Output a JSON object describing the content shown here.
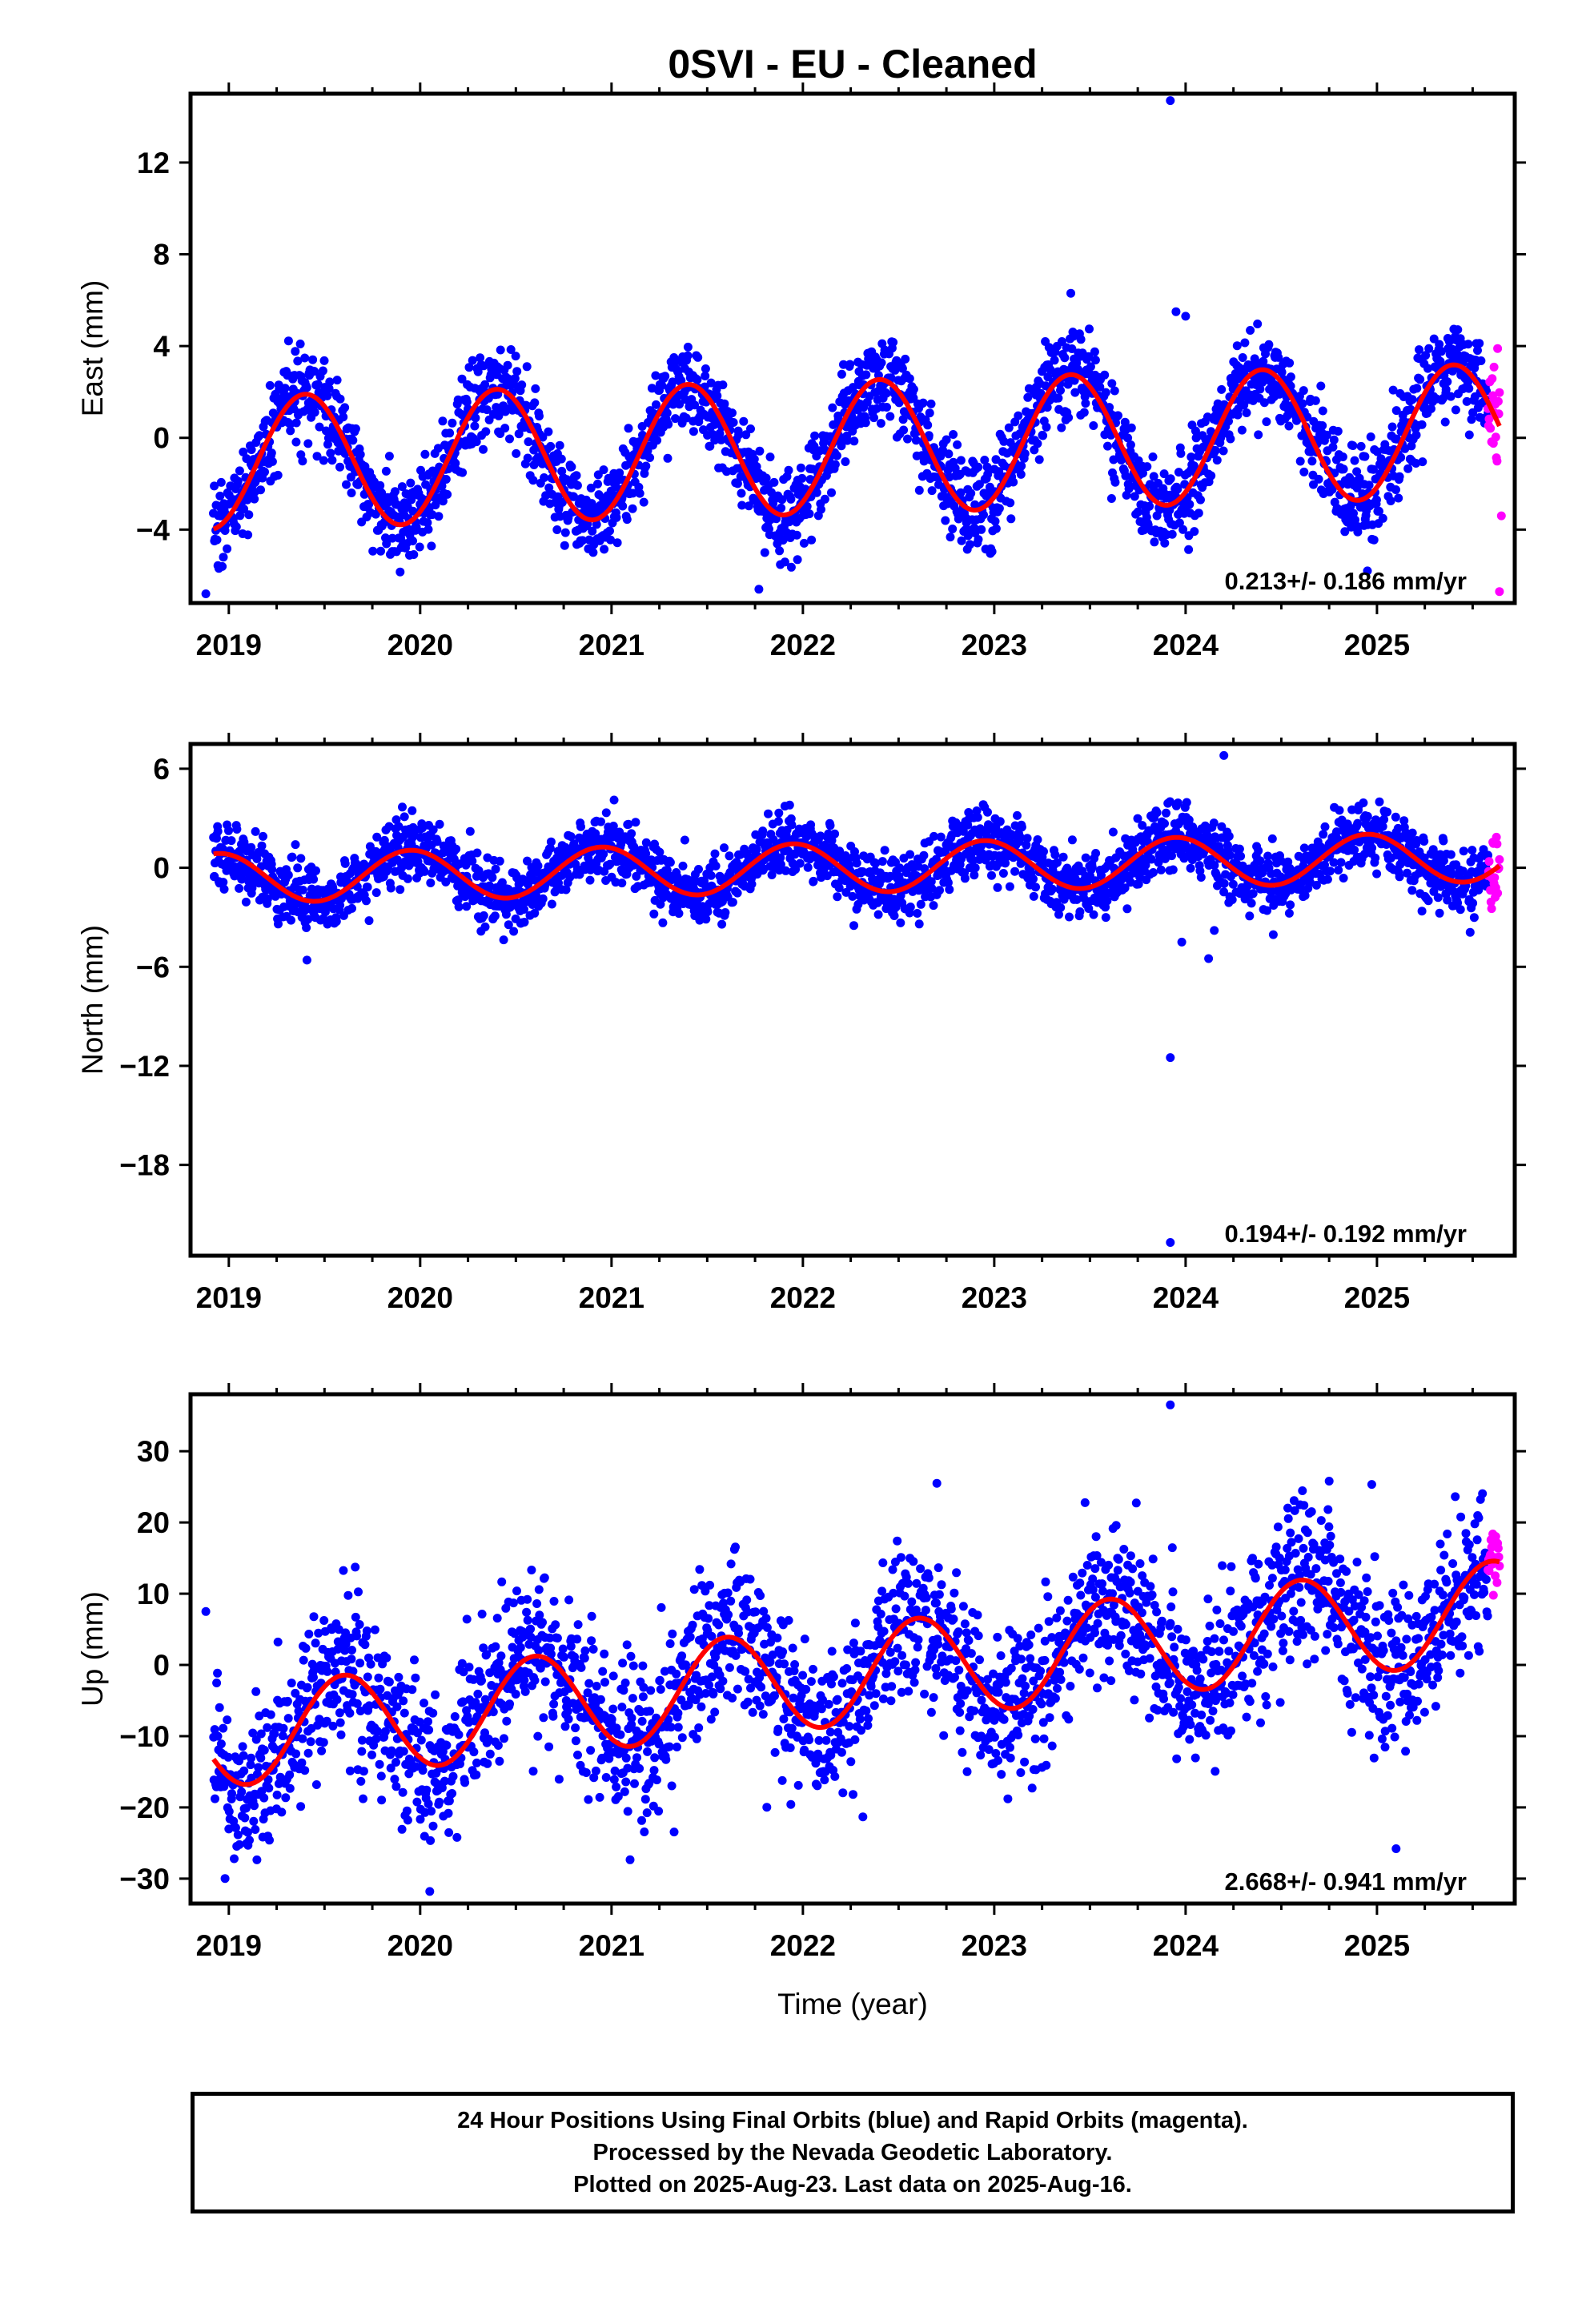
{
  "title": "0SVI  - EU - Cleaned",
  "caption": [
    "24 Hour Positions Using Final Orbits (blue) and Rapid Orbits (magenta).",
    "Processed by the Nevada Geodetic Laboratory.",
    "Plotted on 2025-Aug-23. Last data on 2025-Aug-16."
  ],
  "colors": {
    "final": "#0000ff",
    "rapid": "#ff00ff",
    "model": "#ff0000",
    "frame": "#000000"
  },
  "chart_data": [
    {
      "type": "scatter",
      "id": "east",
      "ylabel": "East (mm)",
      "xlabel": "",
      "xlim": [
        2018.8,
        2025.72
      ],
      "ylim": [
        -7.2,
        15.0
      ],
      "yticks": [
        -4,
        0,
        4,
        8,
        12
      ],
      "ytick_labels": [
        "−4",
        "0",
        "4",
        "8",
        "12"
      ],
      "xticks": [
        2019,
        2020,
        2021,
        2022,
        2023,
        2024,
        2025
      ],
      "rate_label": "0.213+/- 0.186 mm/yr",
      "model": {
        "offset": -0.4,
        "rate": 0.213,
        "ref_year": 2022.2,
        "amplitude": 2.9,
        "phase_peak_year_fraction": 0.4
      },
      "scatter": {
        "final_sigma": 1.0,
        "rapid_sigma": 1.6,
        "final_count": 2350,
        "rapid_count": 20
      },
      "outliers": [
        {
          "x": 2023.92,
          "y": 14.7,
          "series": "final"
        },
        {
          "x": 2023.95,
          "y": 5.5,
          "series": "final"
        },
        {
          "x": 2024.0,
          "y": 5.3,
          "series": "final"
        },
        {
          "x": 2023.4,
          "y": 6.3,
          "series": "final"
        },
        {
          "x": 2018.88,
          "y": -6.8,
          "series": "final"
        },
        {
          "x": 2021.77,
          "y": -6.6,
          "series": "final"
        },
        {
          "x": 2024.95,
          "y": -5.8,
          "series": "final"
        },
        {
          "x": 2025.64,
          "y": -6.7,
          "series": "rapid"
        },
        {
          "x": 2025.65,
          "y": -3.4,
          "series": "rapid"
        }
      ]
    },
    {
      "type": "scatter",
      "id": "north",
      "ylabel": "North (mm)",
      "xlabel": "",
      "xlim": [
        2018.8,
        2025.72
      ],
      "ylim": [
        -23.5,
        7.5
      ],
      "yticks": [
        -18,
        -12,
        -6,
        0,
        6
      ],
      "ytick_labels": [
        "−18",
        "−12",
        "−6",
        "0",
        "6"
      ],
      "xticks": [
        2019,
        2020,
        2021,
        2022,
        2023,
        2024,
        2025
      ],
      "rate_label": "0.194+/- 0.192 mm/yr",
      "model": {
        "offset": 0.0,
        "rate": 0.194,
        "ref_year": 2022.2,
        "amplitude": 1.5,
        "phase_peak_year_fraction": 0.95
      },
      "scatter": {
        "final_sigma": 1.0,
        "rapid_sigma": 1.3,
        "final_count": 2350,
        "rapid_count": 20
      },
      "outliers": [
        {
          "x": 2023.92,
          "y": -11.5,
          "series": "final"
        },
        {
          "x": 2023.92,
          "y": -22.7,
          "series": "final"
        },
        {
          "x": 2024.12,
          "y": -5.5,
          "series": "final"
        },
        {
          "x": 2024.15,
          "y": -3.8,
          "series": "final"
        },
        {
          "x": 2024.2,
          "y": 6.8,
          "series": "final"
        },
        {
          "x": 2023.98,
          "y": -4.5,
          "series": "final"
        }
      ]
    },
    {
      "type": "scatter",
      "id": "up",
      "ylabel": "Up (mm)",
      "xlabel": "Time (year)",
      "xlim": [
        2018.8,
        2025.72
      ],
      "ylim": [
        -33.5,
        38.0
      ],
      "yticks": [
        -30,
        -20,
        -10,
        0,
        10,
        20,
        30
      ],
      "ytick_labels": [
        "−30",
        "−20",
        "−10",
        "0",
        "10",
        "20",
        "30"
      ],
      "xticks": [
        2019,
        2020,
        2021,
        2022,
        2023,
        2024,
        2025
      ],
      "rate_label": "2.668+/- 0.941 mm/yr",
      "model": {
        "offset": -1.5,
        "rate": 2.668,
        "ref_year": 2022.2,
        "amplitude": 7.0,
        "phase_peak_year_fraction": 0.6
      },
      "scatter": {
        "final_sigma": 5.5,
        "rapid_sigma": 3.0,
        "final_count": 2350,
        "rapid_count": 20
      },
      "outliers": [
        {
          "x": 2023.92,
          "y": 36.5,
          "series": "final"
        },
        {
          "x": 2020.05,
          "y": -31.8,
          "series": "final"
        },
        {
          "x": 2025.1,
          "y": -25.8,
          "series": "final"
        },
        {
          "x": 2022.7,
          "y": 25.5,
          "series": "final"
        },
        {
          "x": 2024.75,
          "y": 25.8,
          "series": "final"
        },
        {
          "x": 2018.88,
          "y": 7.5,
          "series": "final"
        }
      ]
    }
  ]
}
